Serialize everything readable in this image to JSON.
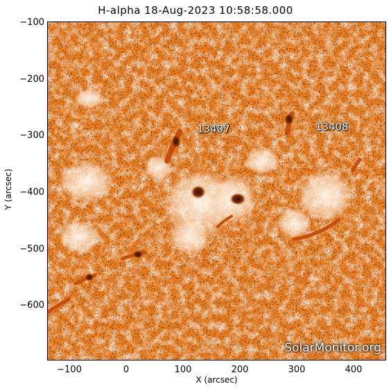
{
  "title": "H-alpha 18-Aug-2023 10:58:58.000",
  "x_axis": {
    "label": "X (arcsec)",
    "ticks": [
      "−100",
      "0",
      "100",
      "200",
      "300",
      "400"
    ],
    "tick_values": [
      -100,
      0,
      100,
      200,
      300,
      400
    ],
    "range": [
      -140,
      455
    ]
  },
  "y_axis": {
    "label": "Y (arcsec)",
    "ticks": [
      "−100",
      "−200",
      "−300",
      "−400",
      "−500",
      "−600"
    ],
    "tick_values": [
      -100,
      -200,
      -300,
      -400,
      -500,
      -600
    ],
    "range": [
      -695,
      -95
    ]
  },
  "regions": [
    {
      "label": "13407",
      "x": 160,
      "y": -290
    },
    {
      "label": "13408",
      "x": 350,
      "y": -288
    }
  ],
  "watermark": "SolarMonitor.org",
  "colors": {
    "base": "#ef7f20",
    "bright": "#fde3c8",
    "dark": "#7a2c08",
    "frame": "#000000"
  }
}
